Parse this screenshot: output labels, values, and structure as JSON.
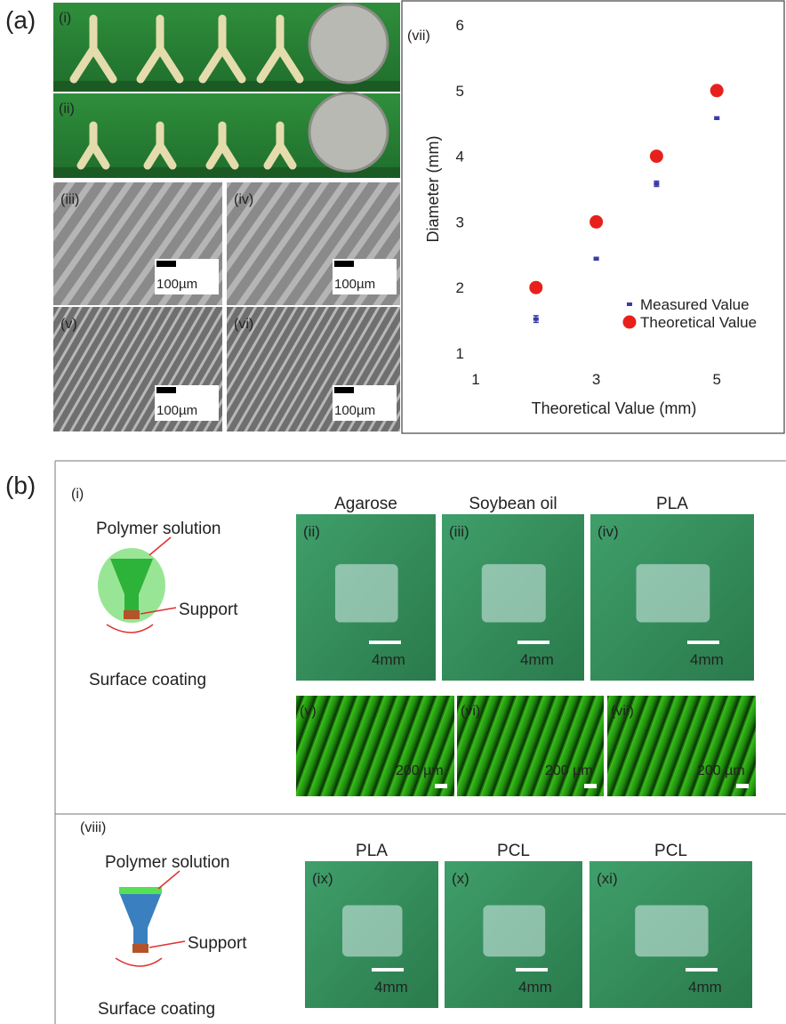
{
  "panel_a": {
    "label": "(a)",
    "photos": [
      "(i)",
      "(ii)"
    ],
    "sem": [
      {
        "label": "(iii)",
        "scale": "100µm"
      },
      {
        "label": "(iv)",
        "scale": "100µm"
      },
      {
        "label": "(v)",
        "scale": "100µm"
      },
      {
        "label": "(vi)",
        "scale": "100µm"
      }
    ]
  },
  "chart_data": {
    "type": "scatter",
    "panel_label": "(vii)",
    "x_label": "Theoretical Value (mm)",
    "y_label": "Diameter (mm)",
    "xlim": [
      1,
      6
    ],
    "ylim": [
      1,
      6
    ],
    "xticks": [
      1,
      3,
      5
    ],
    "yticks": [
      1,
      2,
      3,
      4,
      5,
      6
    ],
    "series": [
      {
        "name": "Measured Value",
        "color": "#3a3aa8",
        "marker": "square",
        "x": [
          2,
          3,
          4,
          5
        ],
        "values": [
          1.52,
          2.44,
          3.58,
          4.58
        ],
        "errors": [
          0.05,
          0.02,
          0.04,
          0.02
        ]
      },
      {
        "name": "Theoretical Value",
        "color": "#e8201c",
        "marker": "circle",
        "x": [
          2,
          3,
          4,
          5
        ],
        "values": [
          2,
          3,
          4,
          5
        ]
      }
    ]
  },
  "panel_b": {
    "label": "(b)",
    "top": {
      "label": "(i)",
      "schematic": {
        "solution": "Polymer solution",
        "support": "Support",
        "coating": "Surface coating"
      },
      "photos": [
        {
          "title": "Agarose",
          "label": "(ii)",
          "scale": "4mm"
        },
        {
          "title": "Soybean oil",
          "label": "(iii)",
          "scale": "4mm"
        },
        {
          "title": "PLA",
          "label": "(iv)",
          "scale": "4mm"
        }
      ],
      "fluorescence": [
        {
          "label": "(v)",
          "scale": "200 µm"
        },
        {
          "label": "(vi)",
          "scale": "200 µm"
        },
        {
          "label": "(vii)",
          "scale": "200 µm"
        }
      ]
    },
    "bottom": {
      "label": "(viii)",
      "schematic": {
        "solution": "Polymer solution",
        "support": "Support",
        "coating": "Surface coating"
      },
      "photos": [
        {
          "title": "PLA",
          "label": "(ix)",
          "scale": "4mm"
        },
        {
          "title": "PCL",
          "label": "(x)",
          "scale": "4mm"
        },
        {
          "title": "PCL",
          "label": "(xi)",
          "scale": "4mm"
        }
      ]
    }
  }
}
